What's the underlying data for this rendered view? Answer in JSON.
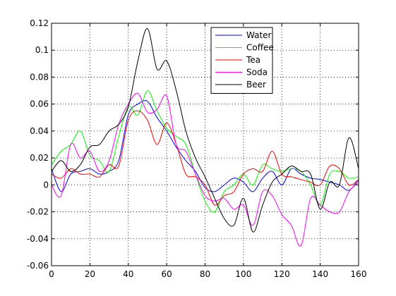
{
  "chart_data": {
    "type": "line",
    "title": "",
    "xlabel": "",
    "ylabel": "",
    "xlim": [
      0,
      160
    ],
    "ylim": [
      -0.06,
      0.12
    ],
    "xticks": [
      "0",
      "20",
      "40",
      "60",
      "80",
      "100",
      "120",
      "140",
      "160"
    ],
    "yticks": [
      "-0.06",
      "-0.04",
      "-0.02",
      "0",
      "0.02",
      "0.04",
      "0.06",
      "0.08",
      "0.1",
      "0.12"
    ],
    "grid": true,
    "legend_position": "top-center",
    "x": [
      0,
      5,
      10,
      15,
      20,
      25,
      30,
      35,
      40,
      45,
      50,
      55,
      60,
      65,
      70,
      75,
      80,
      85,
      90,
      95,
      100,
      105,
      110,
      115,
      120,
      125,
      130,
      135,
      140,
      145,
      150,
      155,
      160
    ],
    "series": [
      {
        "name": "Water",
        "color": "#0000ff",
        "values": [
          0.012,
          -0.005,
          0.008,
          0.01,
          0.012,
          0.008,
          0.01,
          0.018,
          0.052,
          0.06,
          0.062,
          0.05,
          0.04,
          0.028,
          0.018,
          0.01,
          -0.002,
          -0.005,
          0.0,
          0.005,
          0.002,
          -0.005,
          0.005,
          0.01,
          0.0,
          0.012,
          0.008,
          0.005,
          0.004,
          0.002,
          0.0,
          -0.004,
          0.004
        ]
      },
      {
        "name": "Coffee",
        "color": "#00ff00",
        "values": [
          0.015,
          0.025,
          0.03,
          0.04,
          0.022,
          0.018,
          0.01,
          0.036,
          0.058,
          0.052,
          0.07,
          0.055,
          0.042,
          0.036,
          0.03,
          0.008,
          -0.012,
          -0.02,
          -0.005,
          0.0,
          0.008,
          0.0,
          0.015,
          0.012,
          0.01,
          0.012,
          0.01,
          0.0,
          -0.015,
          0.008,
          0.01,
          0.005,
          0.006
        ]
      },
      {
        "name": "Tea",
        "color": "#ff0000",
        "values": [
          0.008,
          0.005,
          0.012,
          0.008,
          0.008,
          0.006,
          0.015,
          0.014,
          0.048,
          0.055,
          0.048,
          0.03,
          0.046,
          0.03,
          0.008,
          0.006,
          0.0,
          -0.015,
          -0.008,
          -0.005,
          0.008,
          0.012,
          0.01,
          0.025,
          0.008,
          0.006,
          0.004,
          0.002,
          0.0,
          0.014,
          0.012,
          0.0,
          0.004
        ]
      },
      {
        "name": "Soda",
        "color": "#ff00ff",
        "values": [
          0.0,
          -0.008,
          0.03,
          0.02,
          0.025,
          0.01,
          0.018,
          0.045,
          0.06,
          0.068,
          0.054,
          0.056,
          0.066,
          0.03,
          0.025,
          0.008,
          -0.008,
          -0.012,
          -0.01,
          -0.018,
          -0.015,
          -0.03,
          -0.005,
          -0.008,
          -0.022,
          -0.03,
          -0.045,
          -0.01,
          -0.015,
          -0.02,
          -0.02,
          -0.005,
          0.002
        ]
      },
      {
        "name": "Beer",
        "color": "#000000",
        "values": [
          0.01,
          0.018,
          0.01,
          0.015,
          0.028,
          0.03,
          0.04,
          0.045,
          0.058,
          0.092,
          0.116,
          0.086,
          0.092,
          0.07,
          0.04,
          0.02,
          0.006,
          -0.01,
          -0.025,
          -0.03,
          -0.01,
          -0.035,
          -0.015,
          0.002,
          0.008,
          0.014,
          0.01,
          0.008,
          -0.018,
          0.002,
          0.0,
          0.035,
          0.012
        ]
      }
    ]
  }
}
